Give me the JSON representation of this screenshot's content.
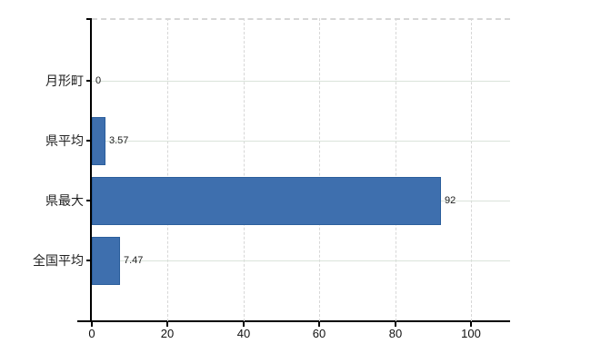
{
  "chart_data": {
    "type": "bar",
    "orientation": "horizontal",
    "title": "",
    "xlabel": "",
    "ylabel": "",
    "categories": [
      "月形町",
      "県平均",
      "県最大",
      "全国平均"
    ],
    "values": [
      0,
      3.57,
      92,
      7.47
    ],
    "value_labels": [
      "0",
      "3.57",
      "92",
      "7.47"
    ],
    "x_ticks": [
      0,
      20,
      40,
      60,
      80,
      100
    ],
    "x_tick_labels": [
      "0",
      "20",
      "40",
      "60",
      "80",
      "100"
    ],
    "xlim": [
      0,
      110
    ],
    "legend": "none",
    "grid": {
      "vertical_style": "dashed",
      "horizontal_style": "solid"
    },
    "colors": {
      "bar_fill": "#3e6fae",
      "bar_border": "#2b5e9c",
      "grid_vertical": "#d7d7d7",
      "grid_horizontal": "#dae3da",
      "axis": "#000000",
      "text": "#1c1c1c",
      "background": "#ffffff"
    }
  }
}
